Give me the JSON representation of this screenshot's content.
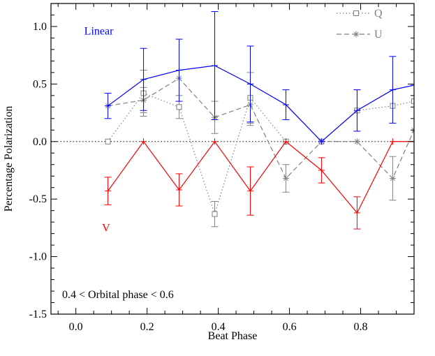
{
  "chart_data": {
    "type": "line",
    "xlabel": "Beat Phase",
    "ylabel": "Percentage Polarization",
    "xlim": [
      -0.07,
      0.95
    ],
    "ylim": [
      -1.5,
      1.2
    ],
    "x_ticks": [
      0.0,
      0.2,
      0.4,
      0.6,
      0.8
    ],
    "x_tick_labels": [
      "0.0",
      "0.2",
      "0.4",
      "0.6",
      "0.8"
    ],
    "y_ticks": [
      -1.5,
      -1.0,
      -0.5,
      0.0,
      0.5,
      1.0
    ],
    "y_tick_labels": [
      "-1.5",
      "-1.0",
      "-0.5",
      "0.0",
      "0.5",
      "1.0"
    ],
    "zero_line": true,
    "grid": false,
    "legend_position": "top-right",
    "annotation": "0.4 < Orbital phase < 0.6",
    "series": [
      {
        "name": "Q",
        "color": "#808080",
        "line_style": "dotted",
        "marker": "square",
        "show_in_legend": true,
        "x": [
          0.09,
          0.19,
          0.29,
          0.39,
          0.49,
          0.59,
          0.69,
          0.79,
          0.89,
          0.95
        ],
        "y": [
          0.0,
          0.42,
          0.3,
          -0.63,
          0.38,
          0.0,
          0.0,
          0.27,
          0.31,
          0.35
        ],
        "err": [
          null,
          0.2,
          0.1,
          0.11,
          0.22,
          null,
          null,
          0.18,
          null,
          null
        ]
      },
      {
        "name": "U",
        "color": "#808080",
        "line_style": "dashed",
        "marker": "asterisk",
        "show_in_legend": true,
        "x": [
          0.09,
          0.19,
          0.29,
          0.39,
          0.49,
          0.59,
          0.69,
          0.79,
          0.89,
          0.95
        ],
        "y": [
          0.31,
          0.36,
          0.55,
          0.21,
          0.32,
          -0.32,
          0.0,
          0.0,
          -0.32,
          0.1
        ],
        "err": [
          null,
          0.11,
          null,
          0.14,
          0.18,
          0.12,
          null,
          null,
          0.19,
          null
        ]
      },
      {
        "name": "Linear",
        "color": "#0000ff",
        "line_style": "solid",
        "marker": "plus",
        "show_in_legend": false,
        "x": [
          0.09,
          0.19,
          0.29,
          0.39,
          0.49,
          0.59,
          0.69,
          0.79,
          0.89,
          0.95
        ],
        "y": [
          0.31,
          0.54,
          0.62,
          0.66,
          0.5,
          0.32,
          0.0,
          0.27,
          0.45,
          0.49
        ],
        "err": [
          0.11,
          0.27,
          0.27,
          0.47,
          0.33,
          0.13,
          null,
          0.18,
          0.29,
          null
        ]
      },
      {
        "name": "V",
        "color": "#ff0000",
        "line_style": "solid",
        "marker": "plus",
        "show_in_legend": false,
        "x": [
          0.09,
          0.19,
          0.29,
          0.39,
          0.49,
          0.59,
          0.69,
          0.79,
          0.89,
          0.95
        ],
        "y": [
          -0.43,
          0.0,
          -0.42,
          0.0,
          -0.43,
          0.0,
          -0.25,
          -0.62,
          0.0,
          0.0
        ],
        "err": [
          0.12,
          null,
          0.14,
          null,
          0.21,
          null,
          0.11,
          0.14,
          null,
          null
        ]
      }
    ],
    "labels": [
      {
        "text": "Linear",
        "color": "#0000ff",
        "x": 0.0,
        "y": 0.93
      },
      {
        "text": "V",
        "color": "#ff0000",
        "x": 0.05,
        "y": -0.78
      }
    ]
  }
}
